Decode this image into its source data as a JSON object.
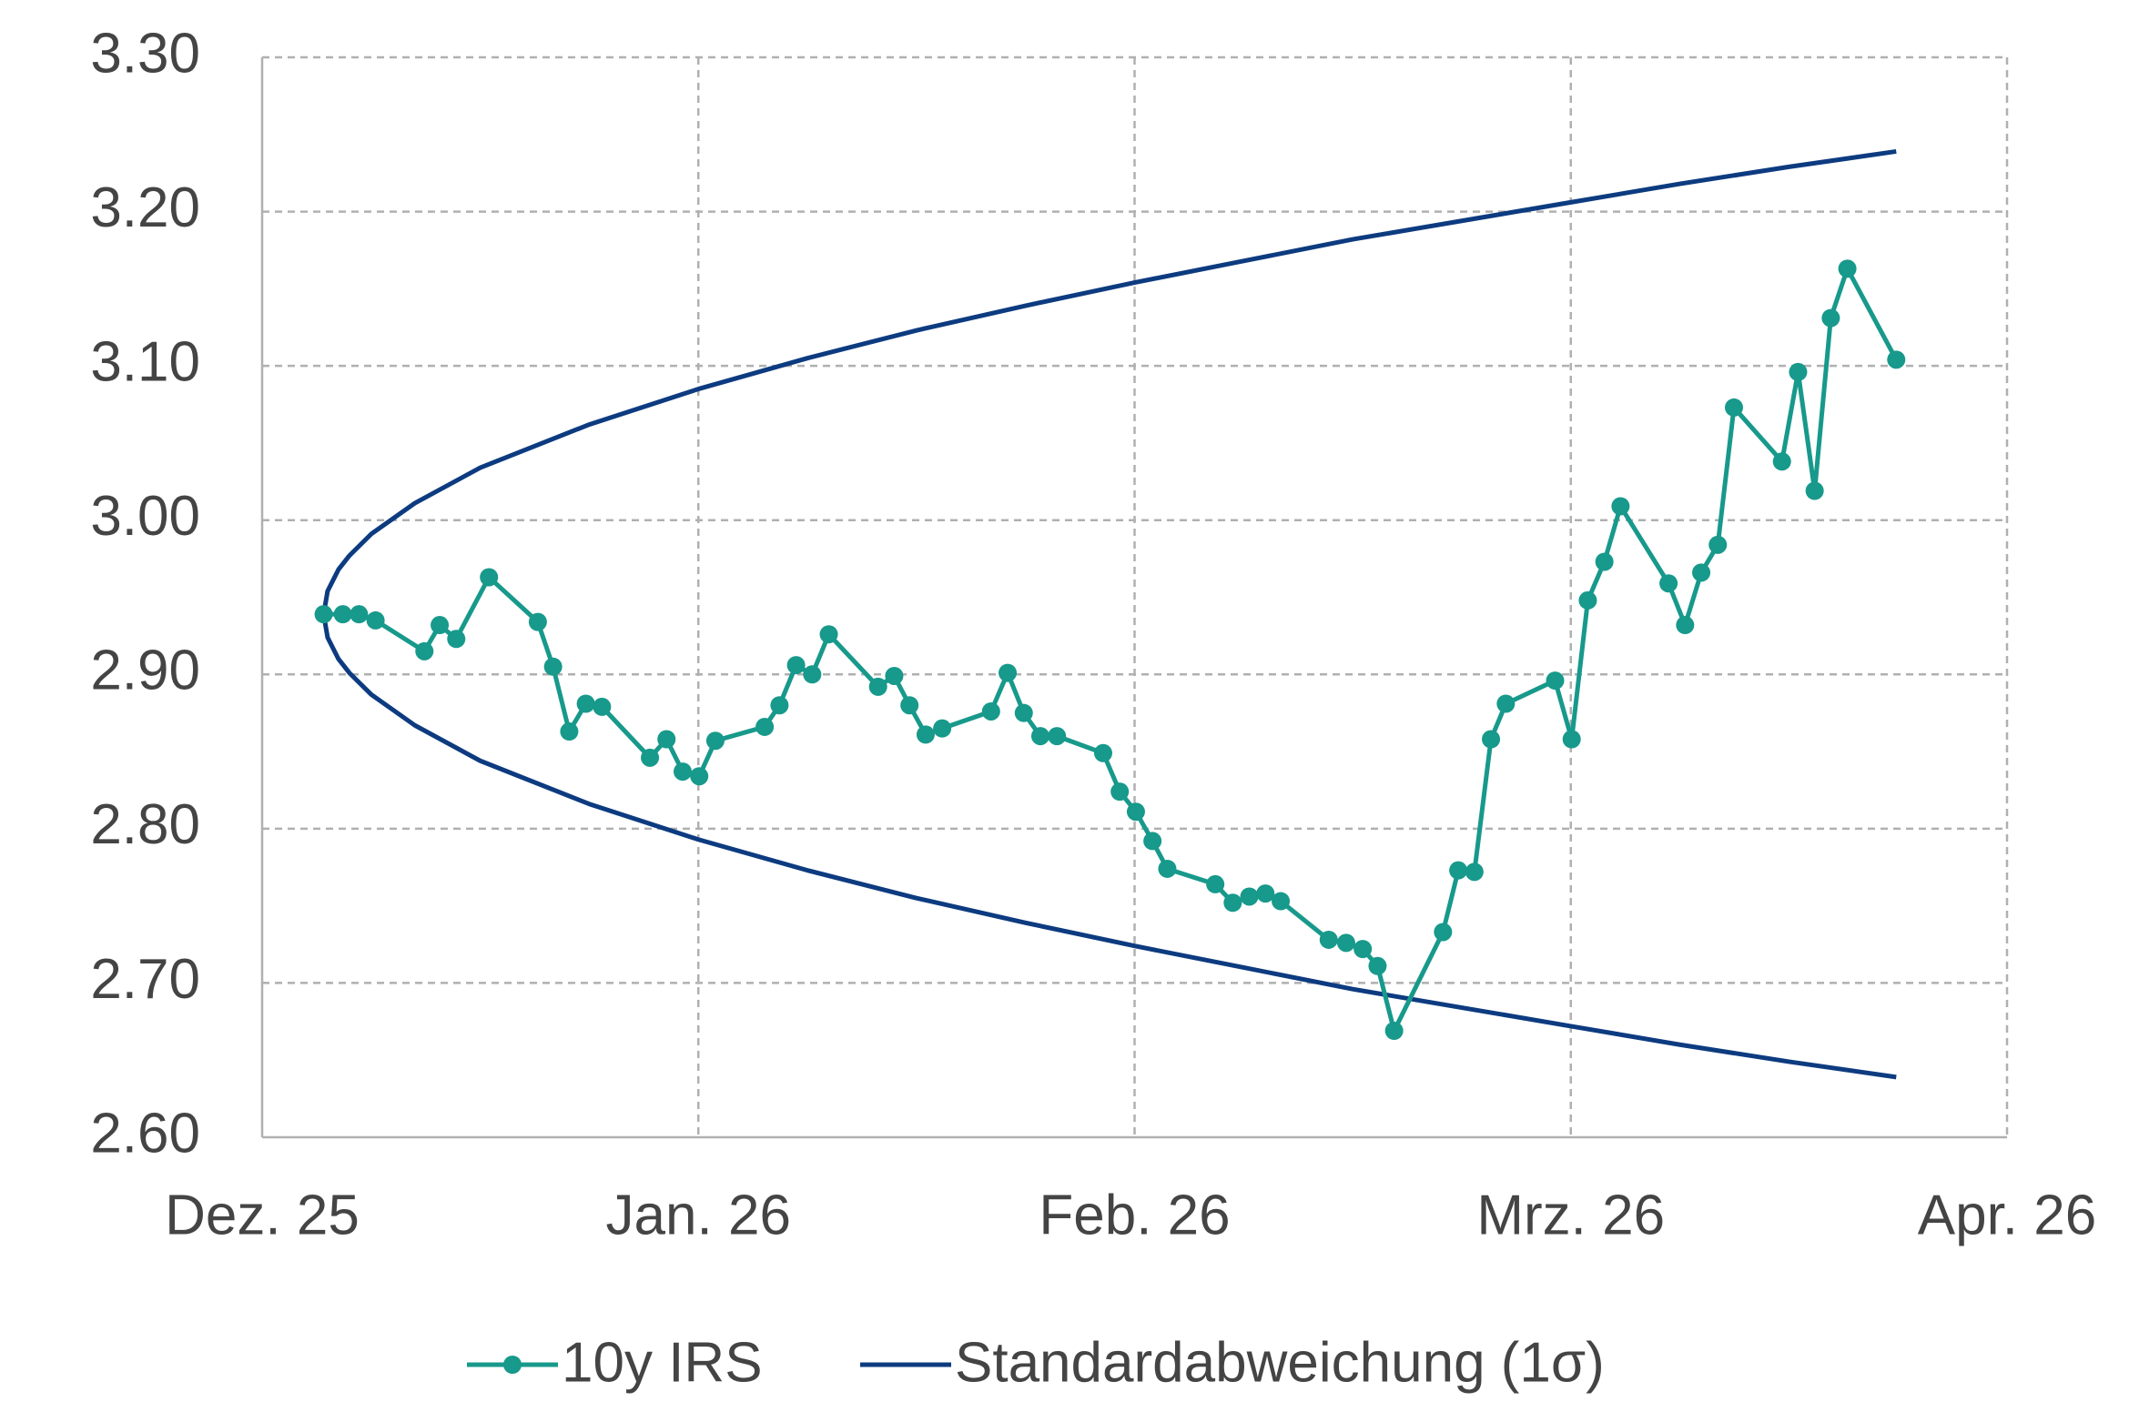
{
  "chart_data": {
    "type": "line",
    "xlim": [
      0,
      4
    ],
    "xticks": [
      {
        "value": 0,
        "label": "Dez. 25"
      },
      {
        "value": 1,
        "label": "Jan. 26"
      },
      {
        "value": 2,
        "label": "Feb. 26"
      },
      {
        "value": 3,
        "label": "Mrz. 26"
      },
      {
        "value": 4,
        "label": "Apr. 26"
      }
    ],
    "ylim": [
      2.6,
      3.3
    ],
    "yticks": [
      {
        "value": 2.6,
        "label": "2.60"
      },
      {
        "value": 2.7,
        "label": "2.70"
      },
      {
        "value": 2.8,
        "label": "2.80"
      },
      {
        "value": 2.9,
        "label": "2.90"
      },
      {
        "value": 3.0,
        "label": "3.00"
      },
      {
        "value": 3.1,
        "label": "3.10"
      },
      {
        "value": 3.2,
        "label": "3.20"
      },
      {
        "value": 3.3,
        "label": "3.30"
      }
    ],
    "grid": true,
    "legend": "bottom",
    "series": [
      {
        "name": "10y IRS",
        "color": "#17998b",
        "markers": true,
        "x": [
          0.141,
          0.185,
          0.222,
          0.26,
          0.372,
          0.407,
          0.445,
          0.52,
          0.632,
          0.667,
          0.704,
          0.742,
          0.779,
          0.889,
          0.927,
          0.964,
          1.002,
          1.039,
          1.152,
          1.186,
          1.224,
          1.261,
          1.299,
          1.412,
          1.449,
          1.484,
          1.521,
          1.559,
          1.671,
          1.709,
          1.746,
          1.784,
          1.822,
          1.928,
          1.966,
          2.003,
          2.041,
          2.075,
          2.185,
          2.225,
          2.263,
          2.3,
          2.335,
          2.445,
          2.485,
          2.523,
          2.557,
          2.595,
          2.707,
          2.742,
          2.779,
          2.817,
          2.851,
          2.964,
          3.002,
          3.039,
          3.077,
          3.114,
          3.224,
          3.262,
          3.299,
          3.337,
          3.374,
          3.484,
          3.521,
          3.559,
          3.596,
          3.634,
          3.746
        ],
        "values": [
          2.939,
          2.939,
          2.939,
          2.935,
          2.915,
          2.932,
          2.923,
          2.963,
          2.934,
          2.905,
          2.863,
          2.881,
          2.879,
          2.846,
          2.858,
          2.837,
          2.834,
          2.857,
          2.866,
          2.88,
          2.906,
          2.9,
          2.926,
          2.892,
          2.899,
          2.88,
          2.861,
          2.865,
          2.876,
          2.901,
          2.875,
          2.86,
          2.86,
          2.849,
          2.824,
          2.811,
          2.792,
          2.774,
          2.764,
          2.752,
          2.756,
          2.758,
          2.753,
          2.728,
          2.726,
          2.722,
          2.711,
          2.669,
          2.733,
          2.773,
          2.772,
          2.858,
          2.881,
          2.896,
          2.858,
          2.948,
          2.973,
          3.009,
          2.959,
          2.932,
          2.966,
          2.984,
          3.073,
          3.038,
          3.096,
          3.019,
          3.131,
          3.163,
          3.104
        ]
      },
      {
        "name": "Standardabweichung (1σ)",
        "color": "#0d3b80",
        "markers": false,
        "x": [
          0.141,
          0.15,
          0.175,
          0.2,
          0.25,
          0.35,
          0.5,
          0.75,
          1.0,
          1.25,
          1.5,
          1.75,
          2.0,
          2.25,
          2.5,
          2.75,
          3.0,
          3.25,
          3.5,
          3.746
        ],
        "upper": [
          2.939,
          2.954,
          2.968,
          2.977,
          2.991,
          3.011,
          3.034,
          3.062,
          3.085,
          3.105,
          3.123,
          3.139,
          3.154,
          3.168,
          3.182,
          3.194,
          3.206,
          3.218,
          3.229,
          3.239
        ],
        "lower": [
          2.939,
          2.924,
          2.91,
          2.901,
          2.887,
          2.867,
          2.844,
          2.816,
          2.793,
          2.773,
          2.755,
          2.739,
          2.724,
          2.71,
          2.696,
          2.684,
          2.672,
          2.66,
          2.649,
          2.639
        ]
      }
    ]
  }
}
